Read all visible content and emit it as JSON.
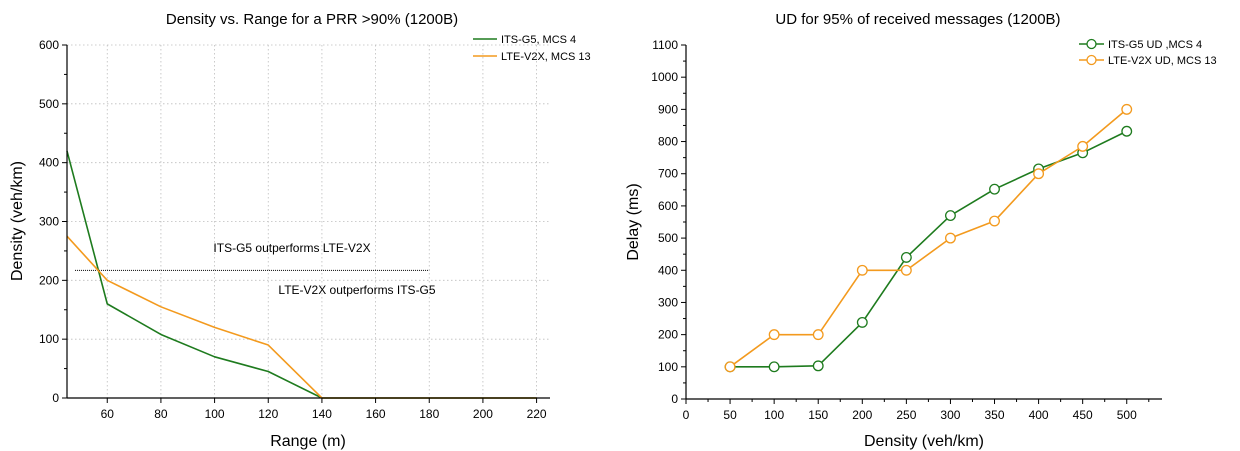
{
  "chart_data": [
    {
      "type": "line",
      "title": "Density vs. Range for a PRR >90% (1200B)",
      "xlabel": "Range (m)",
      "ylabel": "Density (veh/km)",
      "xlim": [
        45,
        225
      ],
      "ylim": [
        0,
        600
      ],
      "xticks": [
        60,
        80,
        100,
        120,
        140,
        160,
        180,
        200,
        220
      ],
      "yticks": [
        0,
        100,
        200,
        300,
        400,
        500,
        600
      ],
      "grid": true,
      "legend_position": "top-right",
      "series": [
        {
          "name": "ITS-G5, MCS 4",
          "color": "#1e7b1e",
          "markers": false,
          "x": [
            45,
            60,
            80,
            100,
            120,
            140,
            160,
            180,
            200,
            220
          ],
          "y": [
            420,
            160,
            108,
            70,
            45,
            0,
            0,
            0,
            0,
            0
          ]
        },
        {
          "name": "LTE-V2X, MCS 13",
          "color": "#f39a1e",
          "markers": false,
          "x": [
            45,
            60,
            80,
            100,
            120,
            140,
            160,
            180,
            200,
            220
          ],
          "y": [
            275,
            200,
            155,
            120,
            90,
            0,
            0,
            0,
            0,
            0
          ]
        }
      ],
      "threshold_line": {
        "x": [
          48,
          180
        ],
        "y": 217
      },
      "annotations": [
        {
          "text": "ITS-G5 outperforms LTE-V2X",
          "x": 132,
          "y": 250
        },
        {
          "text": "LTE-V2X outperforms ITS-G5",
          "x": 152,
          "y": 180
        }
      ]
    },
    {
      "type": "line",
      "title": "UD for 95% of received messages (1200B)",
      "xlabel": "Density (veh/km)",
      "ylabel": "Delay (ms)",
      "xlim": [
        0,
        540
      ],
      "ylim": [
        0,
        1100
      ],
      "xticks": [
        0,
        50,
        100,
        150,
        200,
        250,
        300,
        350,
        400,
        450,
        500
      ],
      "yticks": [
        0,
        100,
        200,
        300,
        400,
        500,
        600,
        700,
        800,
        900,
        1000,
        1100
      ],
      "grid": false,
      "legend_position": "top-right",
      "series": [
        {
          "name": "ITS-G5 UD ,MCS 4",
          "color": "#1e7b1e",
          "markers": true,
          "x": [
            50,
            100,
            150,
            200,
            250,
            300,
            350,
            400,
            450,
            500
          ],
          "y": [
            100,
            100,
            103,
            238,
            440,
            570,
            652,
            715,
            765,
            832
          ]
        },
        {
          "name": "LTE-V2X UD, MCS 13",
          "color": "#f39a1e",
          "markers": true,
          "x": [
            50,
            100,
            150,
            200,
            250,
            300,
            350,
            400,
            450,
            500
          ],
          "y": [
            100,
            200,
            200,
            400,
            400,
            500,
            553,
            700,
            785,
            900
          ]
        }
      ]
    }
  ]
}
